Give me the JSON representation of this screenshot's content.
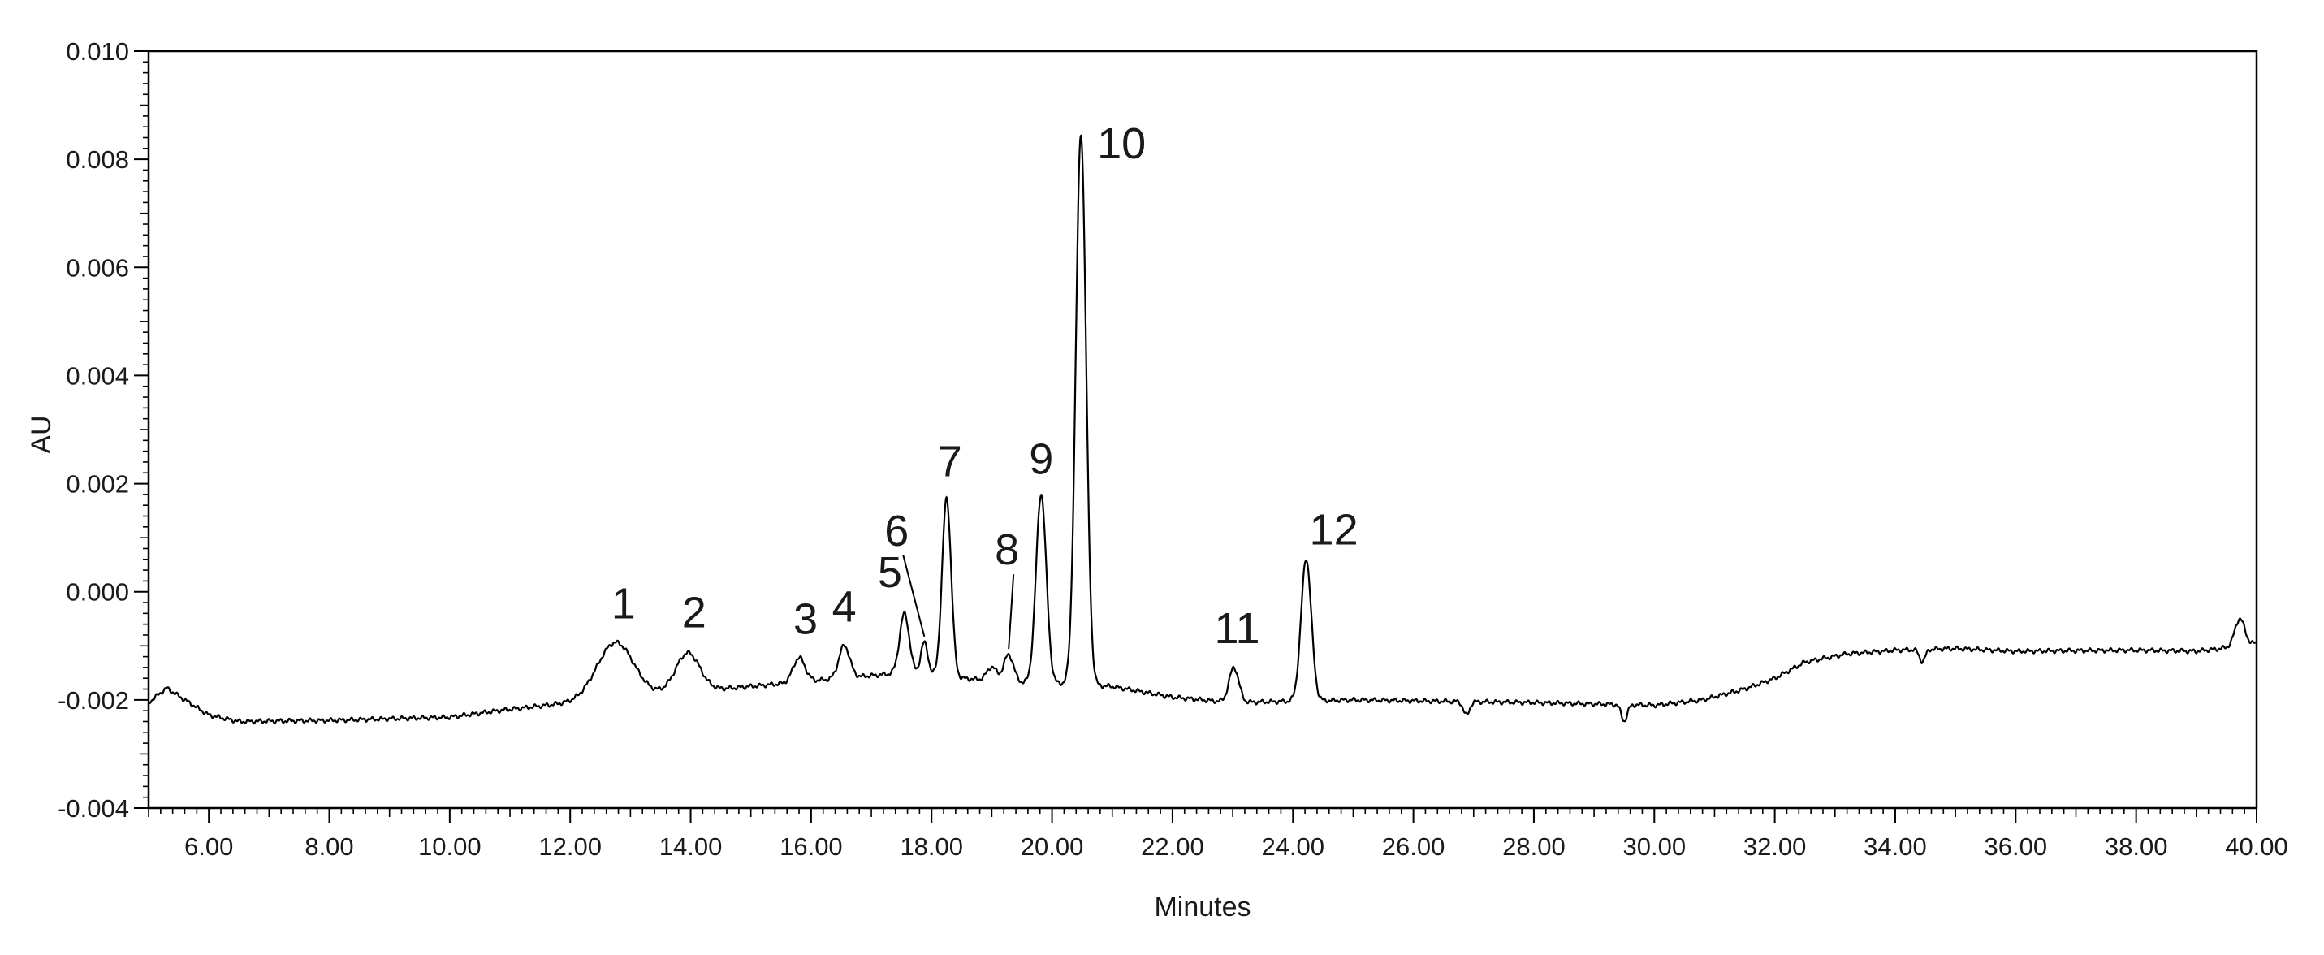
{
  "chart_data": {
    "type": "line",
    "title": "",
    "xlabel": "Minutes",
    "ylabel": "AU",
    "xlim": [
      5.0,
      40.0
    ],
    "ylim": [
      -0.004,
      0.01
    ],
    "x_ticks": [
      6.0,
      8.0,
      10.0,
      12.0,
      14.0,
      16.0,
      18.0,
      20.0,
      22.0,
      24.0,
      26.0,
      28.0,
      30.0,
      32.0,
      34.0,
      36.0,
      38.0,
      40.0
    ],
    "x_tick_labels": [
      "6.00",
      "8.00",
      "10.00",
      "12.00",
      "14.00",
      "16.00",
      "18.00",
      "20.00",
      "22.00",
      "24.00",
      "26.00",
      "28.00",
      "30.00",
      "32.00",
      "34.00",
      "36.00",
      "38.00",
      "40.00"
    ],
    "y_ticks": [
      -0.004,
      -0.002,
      0.0,
      0.002,
      0.004,
      0.006,
      0.008,
      0.01
    ],
    "y_tick_labels": [
      "-0.004",
      "-0.002",
      "0.000",
      "0.002",
      "0.004",
      "0.006",
      "0.008",
      "0.010"
    ],
    "grid": false,
    "line_color": "#000000",
    "baseline": [
      [
        5.0,
        -0.00205
      ],
      [
        5.3,
        -0.00178
      ],
      [
        5.6,
        -0.002
      ],
      [
        6.0,
        -0.00228
      ],
      [
        6.5,
        -0.0024
      ],
      [
        8.0,
        -0.00238
      ],
      [
        10.0,
        -0.00232
      ],
      [
        10.8,
        -0.0022
      ],
      [
        11.6,
        -0.0021
      ],
      [
        12.0,
        -0.00205
      ],
      [
        12.3,
        -0.002
      ],
      [
        14.5,
        -0.0018
      ],
      [
        16.5,
        -0.0016
      ],
      [
        17.5,
        -0.0015
      ],
      [
        18.5,
        -0.0016
      ],
      [
        19.5,
        -0.00168
      ],
      [
        20.2,
        -0.0017
      ],
      [
        21.0,
        -0.00175
      ],
      [
        22.0,
        -0.00195
      ],
      [
        23.0,
        -0.00205
      ],
      [
        25.0,
        -0.002
      ],
      [
        28.0,
        -0.00205
      ],
      [
        30.0,
        -0.0021
      ],
      [
        30.8,
        -0.002
      ],
      [
        31.5,
        -0.0018
      ],
      [
        32.0,
        -0.0016
      ],
      [
        32.5,
        -0.0013
      ],
      [
        33.2,
        -0.00115
      ],
      [
        34.0,
        -0.00108
      ],
      [
        35.0,
        -0.00105
      ],
      [
        36.0,
        -0.0011
      ],
      [
        38.0,
        -0.00108
      ],
      [
        39.0,
        -0.0011
      ],
      [
        39.4,
        -0.00105
      ],
      [
        40.0,
        -0.00095
      ]
    ],
    "peaks": [
      {
        "label": "1",
        "rt": 12.75,
        "height": 0.00102,
        "width": 0.3
      },
      {
        "label": "2",
        "rt": 13.95,
        "height": 0.00072,
        "width": 0.2
      },
      {
        "label": "3",
        "rt": 15.8,
        "height": 0.00045,
        "width": 0.1
      },
      {
        "label": "4",
        "rt": 16.55,
        "height": 0.0006,
        "width": 0.09
      },
      {
        "label": "5",
        "rt": 17.55,
        "height": 0.0011,
        "width": 0.08
      },
      {
        "label": "6",
        "rt": 17.88,
        "height": 0.0006,
        "width": 0.06
      },
      {
        "label": "7",
        "rt": 18.25,
        "height": 0.0033,
        "width": 0.075
      },
      {
        "label": "8",
        "rt": 19.28,
        "height": 0.0005,
        "width": 0.08
      },
      {
        "label": "9",
        "rt": 19.82,
        "height": 0.0035,
        "width": 0.085
      },
      {
        "label": "10",
        "rt": 20.48,
        "height": 0.01018,
        "width": 0.085
      },
      {
        "label": "11",
        "rt": 23.02,
        "height": 0.00065,
        "width": 0.08
      },
      {
        "label": "12",
        "rt": 24.22,
        "height": 0.00263,
        "width": 0.085
      }
    ],
    "minor_features": [
      {
        "rt": 19.0,
        "height": 0.00025,
        "width": 0.08
      },
      {
        "rt": 26.88,
        "height": -0.00025,
        "width": 0.05
      },
      {
        "rt": 29.5,
        "height": -0.0003,
        "width": 0.05
      },
      {
        "rt": 34.45,
        "height": -0.00022,
        "width": 0.05
      },
      {
        "rt": 39.72,
        "height": 0.0005,
        "width": 0.08
      }
    ]
  }
}
